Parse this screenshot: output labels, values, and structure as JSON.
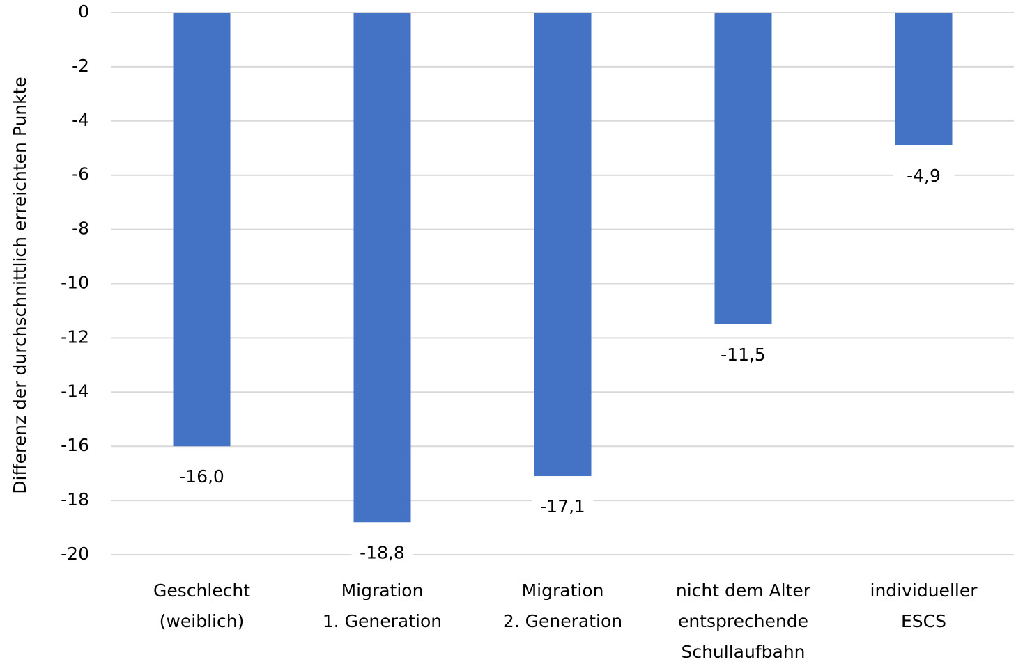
{
  "chart_data": {
    "type": "bar",
    "y_axis_label": "Differenz der durchschnittlich erreichten Punkte",
    "categories": [
      [
        "Geschlecht",
        "(weiblich)"
      ],
      [
        "Migration",
        "1. Generation"
      ],
      [
        "Migration",
        "2. Generation"
      ],
      [
        "nicht dem Alter",
        "entsprechende",
        "Schullaufbahn"
      ],
      [
        "individueller",
        "ESCS"
      ]
    ],
    "values": [
      -16.0,
      -18.8,
      -17.1,
      -11.5,
      -4.9
    ],
    "value_labels": [
      "-16,0",
      "-18,8",
      "-17,1",
      "-11,5",
      "-4,9"
    ],
    "color": "#4472c4",
    "ylim": [
      -20,
      0
    ],
    "yticks": [
      0,
      -2,
      -4,
      -6,
      -8,
      -10,
      -12,
      -14,
      -16,
      -18,
      -20
    ],
    "grid": true
  }
}
